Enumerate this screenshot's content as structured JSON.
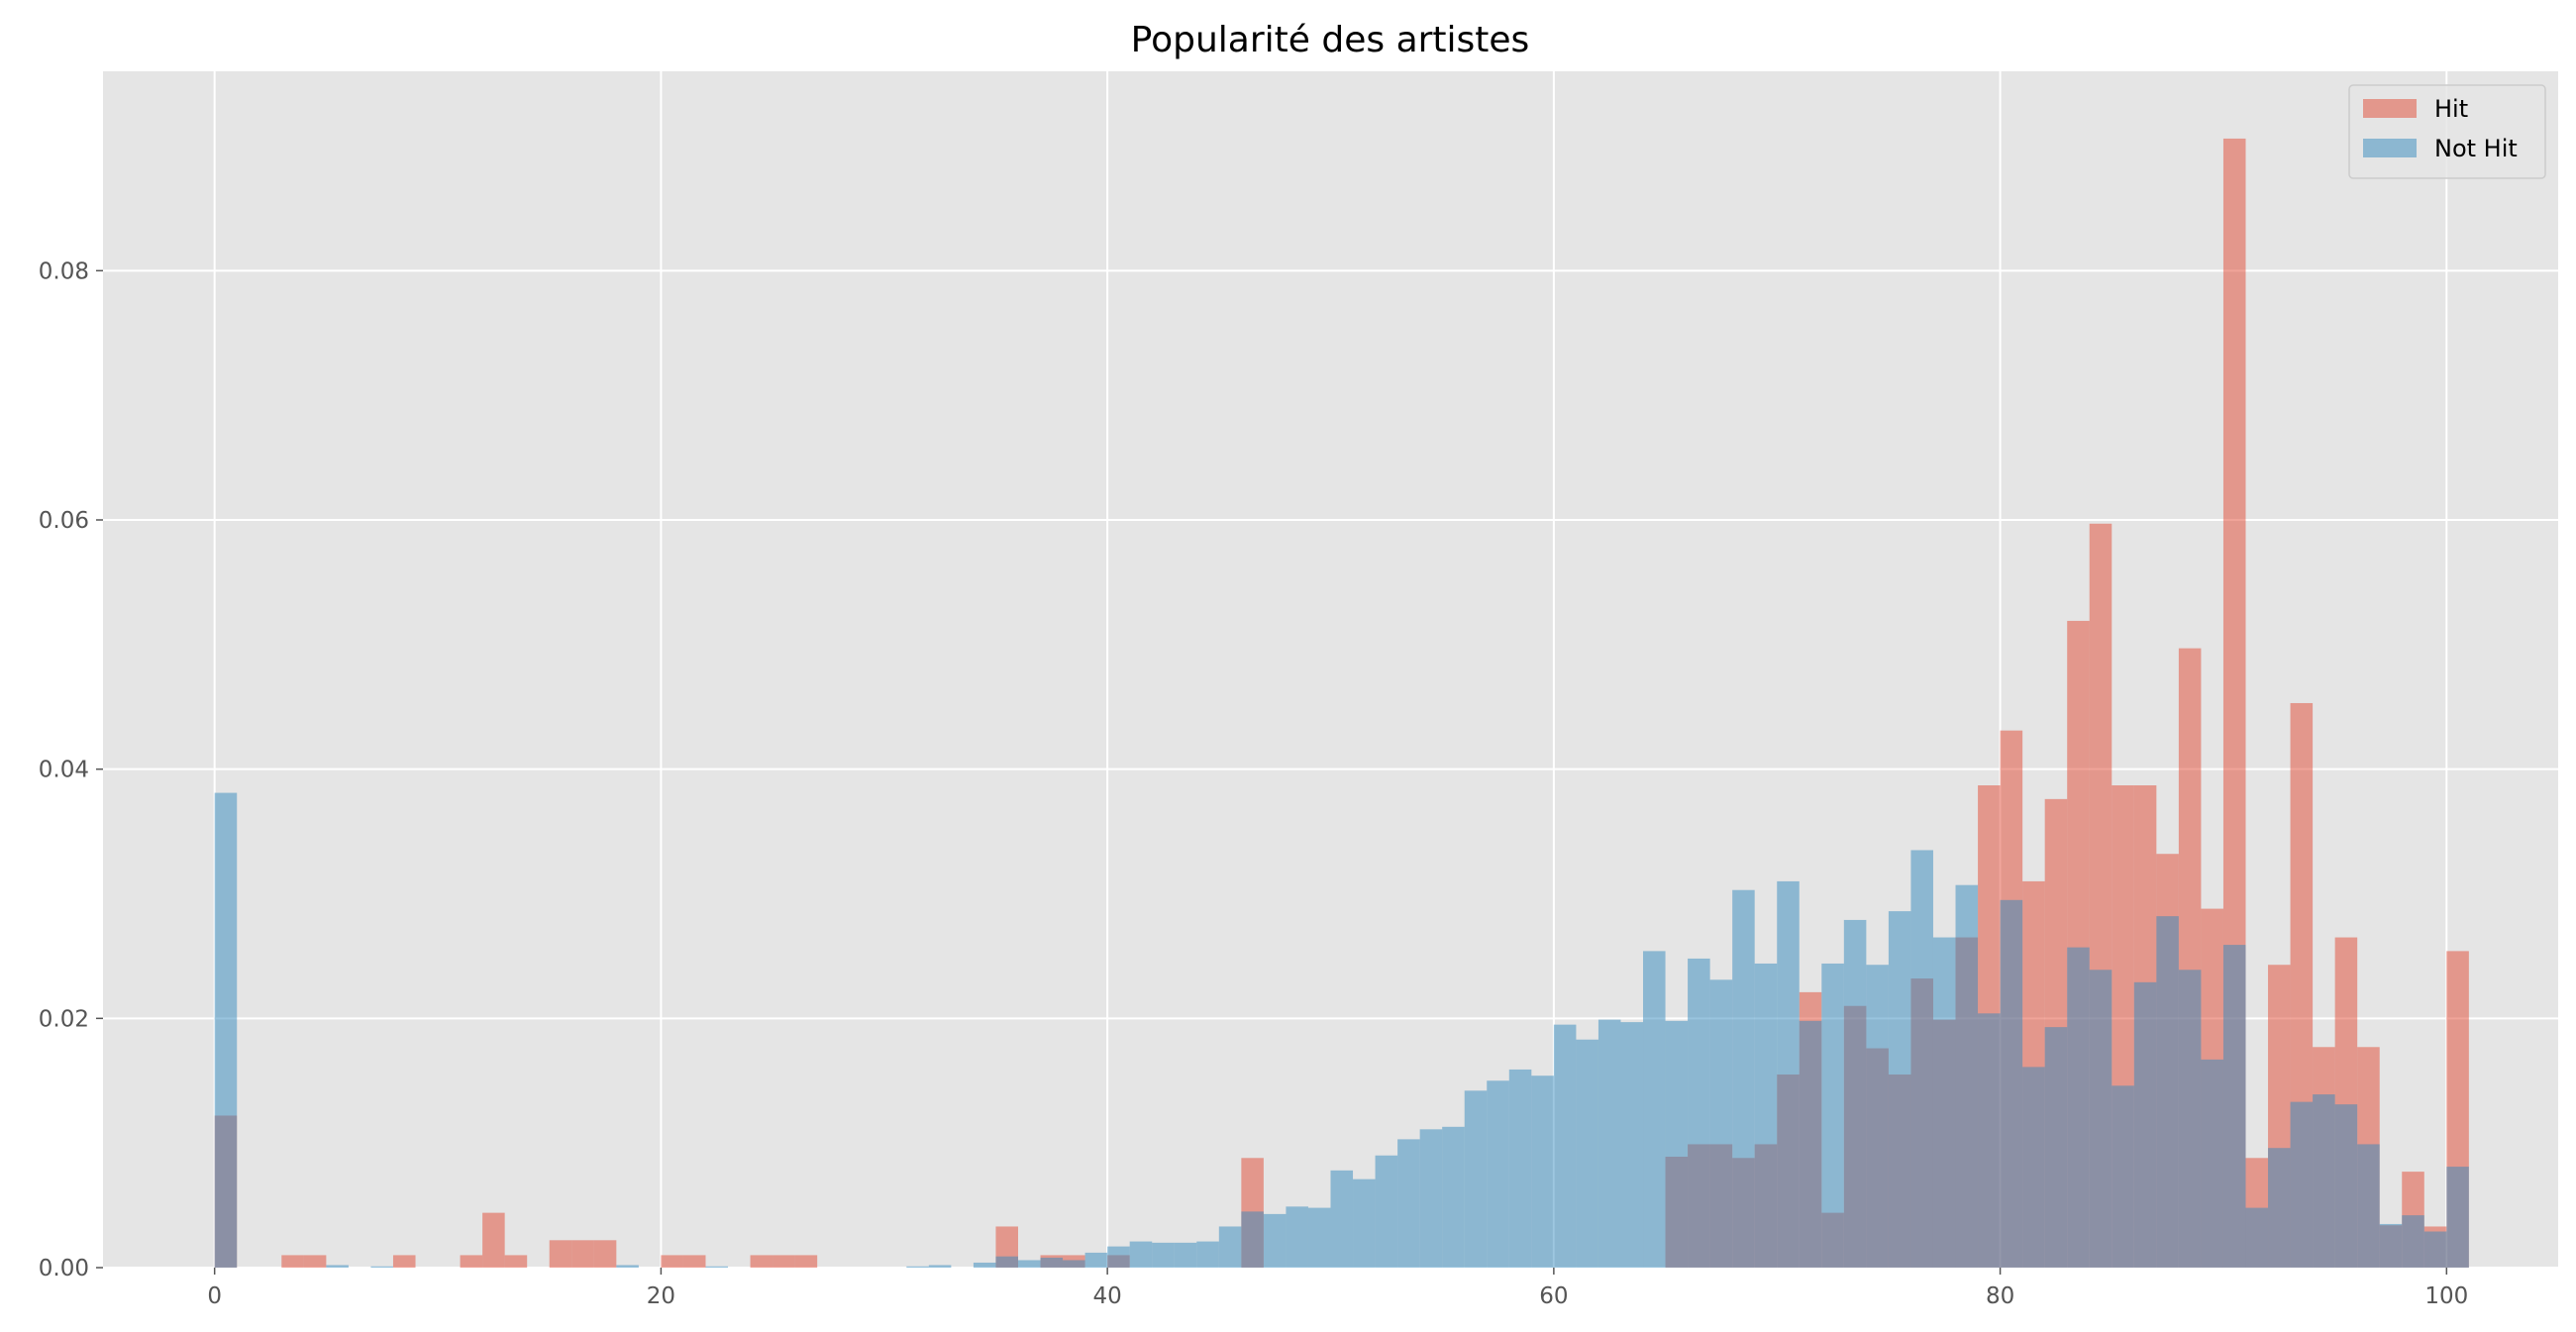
{
  "chart_data": {
    "type": "bar",
    "title": "Popularité des artistes",
    "xlabel": "",
    "ylabel": "",
    "xlim": [
      -5,
      105
    ],
    "ylim": [
      0,
      0.096
    ],
    "bin_width": 1,
    "x_ticks": [
      0,
      20,
      40,
      60,
      80,
      100
    ],
    "y_ticks": [
      0.0,
      0.02,
      0.04,
      0.06,
      0.08
    ],
    "x_tick_labels": [
      "0",
      "20",
      "40",
      "60",
      "80",
      "100"
    ],
    "y_tick_labels": [
      "0.00",
      "0.02",
      "0.04",
      "0.06",
      "0.08"
    ],
    "grid": true,
    "legend_position": "top-right",
    "series": [
      {
        "name": "Hit",
        "color": "#E24A33",
        "opacity": 0.5,
        "bins": [
          [
            0,
            0.0122
          ],
          [
            3,
            0.001
          ],
          [
            4,
            0.001
          ],
          [
            8,
            0.001
          ],
          [
            11,
            0.001
          ],
          [
            12,
            0.0044
          ],
          [
            13,
            0.001
          ],
          [
            15,
            0.0022
          ],
          [
            16,
            0.0022
          ],
          [
            17,
            0.0022
          ],
          [
            20,
            0.001
          ],
          [
            21,
            0.001
          ],
          [
            24,
            0.001
          ],
          [
            25,
            0.001
          ],
          [
            26,
            0.001
          ],
          [
            35,
            0.0033
          ],
          [
            37,
            0.001
          ],
          [
            38,
            0.001
          ],
          [
            40,
            0.001
          ],
          [
            46,
            0.0088
          ],
          [
            65,
            0.0089
          ],
          [
            66,
            0.0099
          ],
          [
            67,
            0.0099
          ],
          [
            68,
            0.0088
          ],
          [
            69,
            0.0099
          ],
          [
            70,
            0.0155
          ],
          [
            71,
            0.0221
          ],
          [
            72,
            0.0044
          ],
          [
            73,
            0.021
          ],
          [
            74,
            0.0176
          ],
          [
            75,
            0.0155
          ],
          [
            76,
            0.0232
          ],
          [
            77,
            0.0199
          ],
          [
            78,
            0.0265
          ],
          [
            79,
            0.0387
          ],
          [
            80,
            0.0431
          ],
          [
            81,
            0.031
          ],
          [
            82,
            0.0376
          ],
          [
            83,
            0.0519
          ],
          [
            84,
            0.0597
          ],
          [
            85,
            0.0387
          ],
          [
            86,
            0.0387
          ],
          [
            87,
            0.0332
          ],
          [
            88,
            0.0497
          ],
          [
            89,
            0.0288
          ],
          [
            90,
            0.0906
          ],
          [
            91,
            0.0088
          ],
          [
            92,
            0.0243
          ],
          [
            93,
            0.0453
          ],
          [
            94,
            0.0177
          ],
          [
            95,
            0.0265
          ],
          [
            96,
            0.0177
          ],
          [
            97,
            0.0034
          ],
          [
            98,
            0.0077
          ],
          [
            99,
            0.0033
          ],
          [
            100,
            0.0254
          ]
        ]
      },
      {
        "name": "Not Hit",
        "color": "#348ABD",
        "opacity": 0.5,
        "bins": [
          [
            0,
            0.0381
          ],
          [
            5,
            0.0002
          ],
          [
            7,
            0.0001
          ],
          [
            18,
            0.0002
          ],
          [
            22,
            0.0001
          ],
          [
            31,
            0.0001
          ],
          [
            32,
            0.0002
          ],
          [
            34,
            0.0004
          ],
          [
            35,
            0.0009
          ],
          [
            36,
            0.0006
          ],
          [
            37,
            0.0008
          ],
          [
            38,
            0.0006
          ],
          [
            39,
            0.0012
          ],
          [
            40,
            0.0017
          ],
          [
            41,
            0.0021
          ],
          [
            42,
            0.002
          ],
          [
            43,
            0.002
          ],
          [
            44,
            0.0021
          ],
          [
            45,
            0.0033
          ],
          [
            46,
            0.0045
          ],
          [
            47,
            0.0043
          ],
          [
            48,
            0.0049
          ],
          [
            49,
            0.0048
          ],
          [
            50,
            0.0078
          ],
          [
            51,
            0.0071
          ],
          [
            52,
            0.009
          ],
          [
            53,
            0.0103
          ],
          [
            54,
            0.0111
          ],
          [
            55,
            0.0113
          ],
          [
            56,
            0.0142
          ],
          [
            57,
            0.015
          ],
          [
            58,
            0.0159
          ],
          [
            59,
            0.0154
          ],
          [
            60,
            0.0195
          ],
          [
            61,
            0.0183
          ],
          [
            62,
            0.0199
          ],
          [
            63,
            0.0197
          ],
          [
            64,
            0.0254
          ],
          [
            65,
            0.0198
          ],
          [
            66,
            0.0248
          ],
          [
            67,
            0.0231
          ],
          [
            68,
            0.0303
          ],
          [
            69,
            0.0244
          ],
          [
            70,
            0.031
          ],
          [
            71,
            0.0198
          ],
          [
            72,
            0.0244
          ],
          [
            73,
            0.0279
          ],
          [
            74,
            0.0243
          ],
          [
            75,
            0.0286
          ],
          [
            76,
            0.0335
          ],
          [
            77,
            0.0265
          ],
          [
            78,
            0.0307
          ],
          [
            79,
            0.0204
          ],
          [
            80,
            0.0295
          ],
          [
            81,
            0.0161
          ],
          [
            82,
            0.0193
          ],
          [
            83,
            0.0257
          ],
          [
            84,
            0.0239
          ],
          [
            85,
            0.0146
          ],
          [
            86,
            0.0229
          ],
          [
            87,
            0.0282
          ],
          [
            88,
            0.0239
          ],
          [
            89,
            0.0167
          ],
          [
            90,
            0.0259
          ],
          [
            91,
            0.0048
          ],
          [
            92,
            0.0096
          ],
          [
            93,
            0.0133
          ],
          [
            94,
            0.0139
          ],
          [
            95,
            0.0131
          ],
          [
            96,
            0.0099
          ],
          [
            97,
            0.0035
          ],
          [
            98,
            0.0042
          ],
          [
            99,
            0.0029
          ],
          [
            100,
            0.0081
          ]
        ]
      }
    ]
  },
  "colors": {
    "plot_background": "#E5E5E5",
    "grid": "#FFFFFF",
    "tick_text": "#555555"
  }
}
